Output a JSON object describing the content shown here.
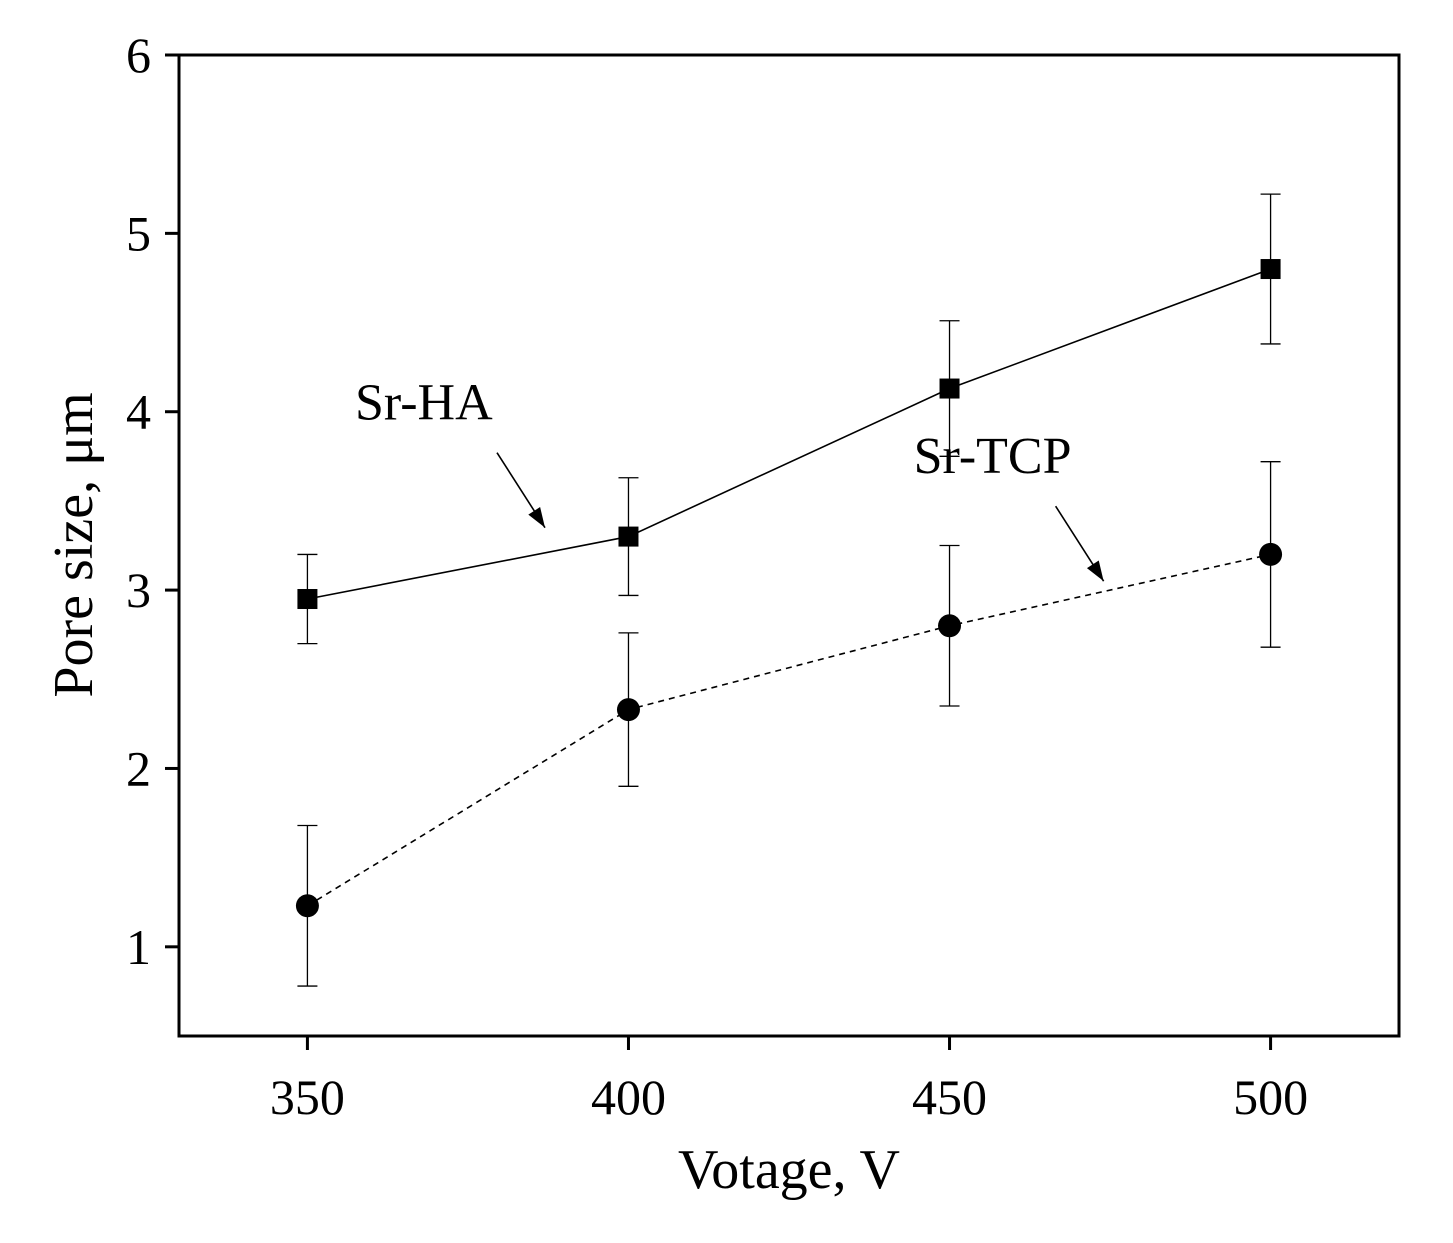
{
  "chart_data": {
    "type": "line",
    "title": "",
    "xlabel": "Votage, V",
    "ylabel": "Pore size, μm",
    "xlim": [
      330,
      520
    ],
    "ylim": [
      0.5,
      6
    ],
    "x_ticks": [
      350,
      400,
      450,
      500
    ],
    "y_ticks": [
      1,
      2,
      3,
      4,
      5,
      6
    ],
    "grid": false,
    "legend": "none",
    "x": [
      350,
      400,
      450,
      500
    ],
    "series": [
      {
        "name": "Sr-HA",
        "marker": "square",
        "line_style": "solid",
        "values": [
          2.95,
          3.3,
          4.13,
          4.8
        ],
        "error": [
          0.25,
          0.33,
          0.38,
          0.42
        ]
      },
      {
        "name": "Sr-TCP",
        "marker": "circle",
        "line_style": "dashed",
        "values": [
          1.23,
          2.33,
          2.8,
          3.2
        ],
        "error": [
          0.45,
          0.43,
          0.45,
          0.52
        ]
      }
    ],
    "annotations": [
      {
        "text": "Sr-HA",
        "points_to_series": "Sr-HA",
        "near_x": 387,
        "near_y": 3.35
      },
      {
        "text": "Sr-TCP",
        "points_to_series": "Sr-TCP",
        "near_x": 474,
        "near_y": 3.05
      }
    ],
    "colors": {
      "axis": "#000000",
      "series": "#000000",
      "background": "#ffffff"
    }
  }
}
